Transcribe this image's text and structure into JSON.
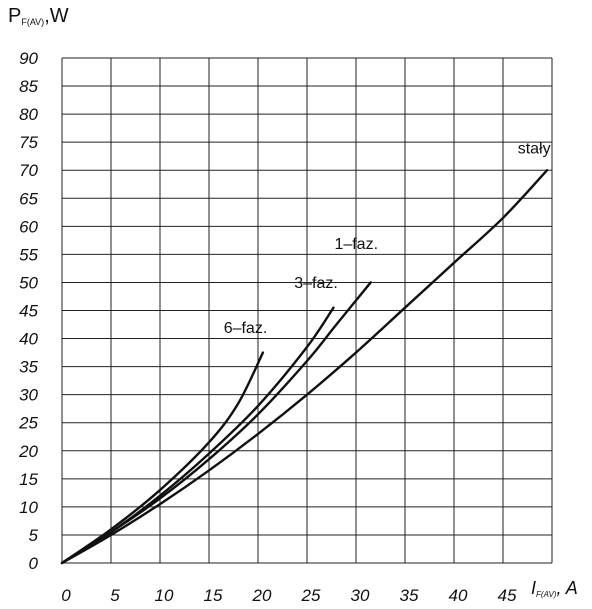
{
  "chart_data": {
    "type": "line",
    "ylabel": {
      "main": "P",
      "sub": "F(AV)",
      "unit": ",W"
    },
    "xlabel": {
      "main": "I",
      "sub": "F(AV)",
      "unit": ", A"
    },
    "xlim": [
      0,
      50
    ],
    "ylim": [
      0,
      90
    ],
    "x_ticks": [
      "0",
      "5",
      "10",
      "15",
      "20",
      "25",
      "30",
      "35",
      "40",
      "45"
    ],
    "y_ticks": [
      "0",
      "5",
      "10",
      "15",
      "20",
      "25",
      "30",
      "35",
      "40",
      "45",
      "50",
      "55",
      "60",
      "65",
      "70",
      "75",
      "80",
      "85",
      "90"
    ],
    "grid": true,
    "series": [
      {
        "name": "stały",
        "x": [
          0,
          5,
          10,
          15,
          20,
          25,
          30,
          35,
          40,
          45,
          49.5
        ],
        "y": [
          0,
          5,
          10.5,
          16.5,
          23,
          30,
          37.5,
          45.5,
          53.5,
          61.5,
          70
        ]
      },
      {
        "name": "1–faz.",
        "x": [
          0,
          5,
          10,
          15,
          20,
          25,
          28,
          31.5
        ],
        "y": [
          0,
          5.5,
          11.5,
          18.5,
          26.5,
          36,
          42.5,
          50
        ]
      },
      {
        "name": "3–faz.",
        "x": [
          0,
          5,
          10,
          15,
          20,
          25,
          27.7
        ],
        "y": [
          0,
          5.5,
          12,
          19.5,
          28,
          38.5,
          45.5
        ]
      },
      {
        "name": "6–faz.",
        "x": [
          0,
          5,
          10,
          15,
          18,
          20.5
        ],
        "y": [
          0,
          6,
          13,
          21.5,
          28.5,
          37.5
        ]
      }
    ]
  }
}
